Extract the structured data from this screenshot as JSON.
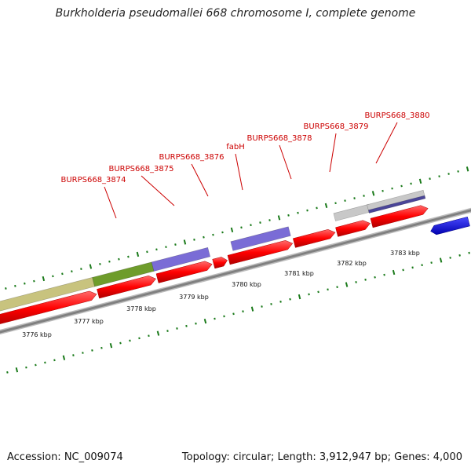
{
  "title": "Burkholderia pseudomallei 668 chromosome I, complete genome",
  "footer": {
    "accession": "Accession: NC_009074",
    "summary": "Topology: circular; Length: 3,912,947 bp; Genes: 4,000"
  },
  "scale": {
    "tick_labels": [
      "3776 kbp",
      "3777 kbp",
      "3778 kbp",
      "3779 kbp",
      "3780 kbp",
      "3781 kbp",
      "3782 kbp",
      "3783 kbp"
    ]
  },
  "gene_labels": [
    "BURPS668_3874",
    "BURPS668_3875",
    "BURPS668_3876",
    "fabH",
    "BURPS668_3878",
    "BURPS668_3879",
    "BURPS668_3880"
  ],
  "colors": {
    "cds": "#ff0000",
    "gene_label": "#cc0000",
    "tick": "#1a7a1a",
    "backbone": "#808080",
    "feature_olive": "#c8c37e",
    "feature_green": "#6e9c2b",
    "feature_purple": "#7a6cd6",
    "feature_gray": "#c8c8c8",
    "feature_navy": "#4a4598",
    "cds_reverse": "#0000ee"
  }
}
